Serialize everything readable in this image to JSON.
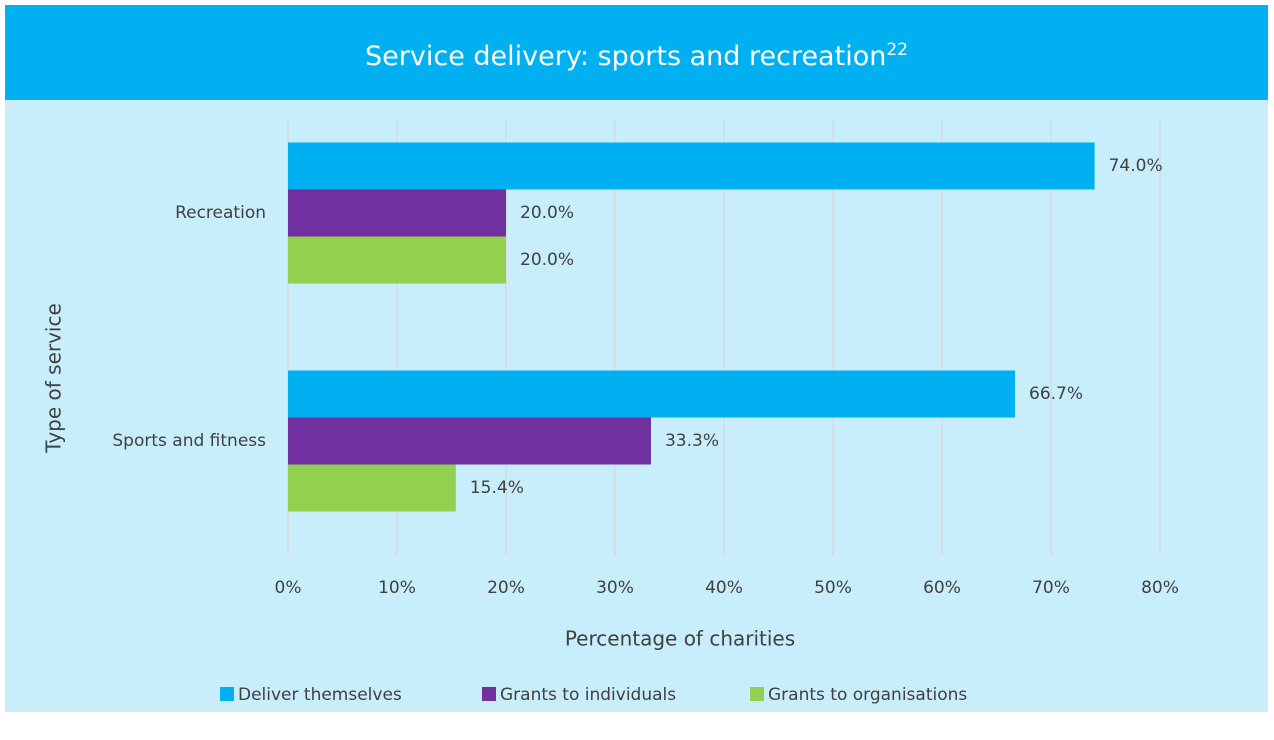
{
  "chart_data": {
    "type": "hbar",
    "title": "Service delivery: sports and recreation",
    "title_superscript": "22",
    "x_axis_label": "Percentage of charities",
    "y_axis_label": "Type of service",
    "categories": [
      "Recreation",
      "Sports and fitness"
    ],
    "series": [
      {
        "name": "Deliver themselves",
        "color": "#00b0f0",
        "values": [
          74.0,
          66.7
        ],
        "value_labels": [
          "74.0%",
          "66.7%"
        ]
      },
      {
        "name": "Grants to individuals",
        "color": "#7030a0",
        "values": [
          20.0,
          33.3
        ],
        "value_labels": [
          "20.0%",
          "33.3%"
        ]
      },
      {
        "name": "Grants to organisations",
        "color": "#92d050",
        "values": [
          20.0,
          15.4
        ],
        "value_labels": [
          "20.0%",
          "15.4%"
        ]
      }
    ],
    "xlim": [
      0,
      80
    ],
    "xticks": [
      {
        "value": 0,
        "label": "0%"
      },
      {
        "value": 10,
        "label": "10%"
      },
      {
        "value": 20,
        "label": "20%"
      },
      {
        "value": 30,
        "label": "30%"
      },
      {
        "value": 40,
        "label": "40%"
      },
      {
        "value": 50,
        "label": "50%"
      },
      {
        "value": 60,
        "label": "60%"
      },
      {
        "value": 70,
        "label": "70%"
      },
      {
        "value": 80,
        "label": "80%"
      }
    ],
    "grid": true,
    "legend": "bottom"
  }
}
